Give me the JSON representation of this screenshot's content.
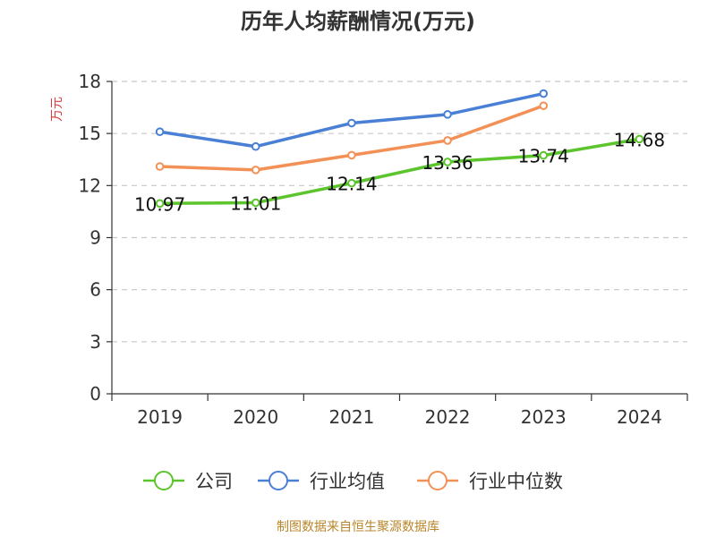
{
  "chart_data": {
    "type": "line",
    "title": "历年人均薪酬情况(万元)",
    "ylabel": "万元",
    "xlabel": "",
    "categories": [
      "2019",
      "2020",
      "2021",
      "2022",
      "2023",
      "2024"
    ],
    "yticks": [
      "0",
      "3",
      "6",
      "9",
      "12",
      "15",
      "18"
    ],
    "ylim": [
      0,
      18
    ],
    "grid": true,
    "legend_position": "bottom",
    "series": [
      {
        "name": "公司",
        "color": "#5cc42c",
        "values": [
          10.97,
          11.01,
          12.14,
          13.36,
          13.74,
          14.68
        ],
        "labels": [
          "10.97",
          "11.01",
          "12.14",
          "13.36",
          "13.74",
          "14.68"
        ]
      },
      {
        "name": "行业均值",
        "color": "#4a7fd6",
        "values": [
          15.1,
          14.25,
          15.6,
          16.1,
          17.3,
          null
        ]
      },
      {
        "name": "行业中位数",
        "color": "#f39056",
        "values": [
          13.1,
          12.9,
          13.75,
          14.6,
          16.6,
          null
        ]
      }
    ]
  },
  "source_text": "制图数据来自恒生聚源数据库"
}
